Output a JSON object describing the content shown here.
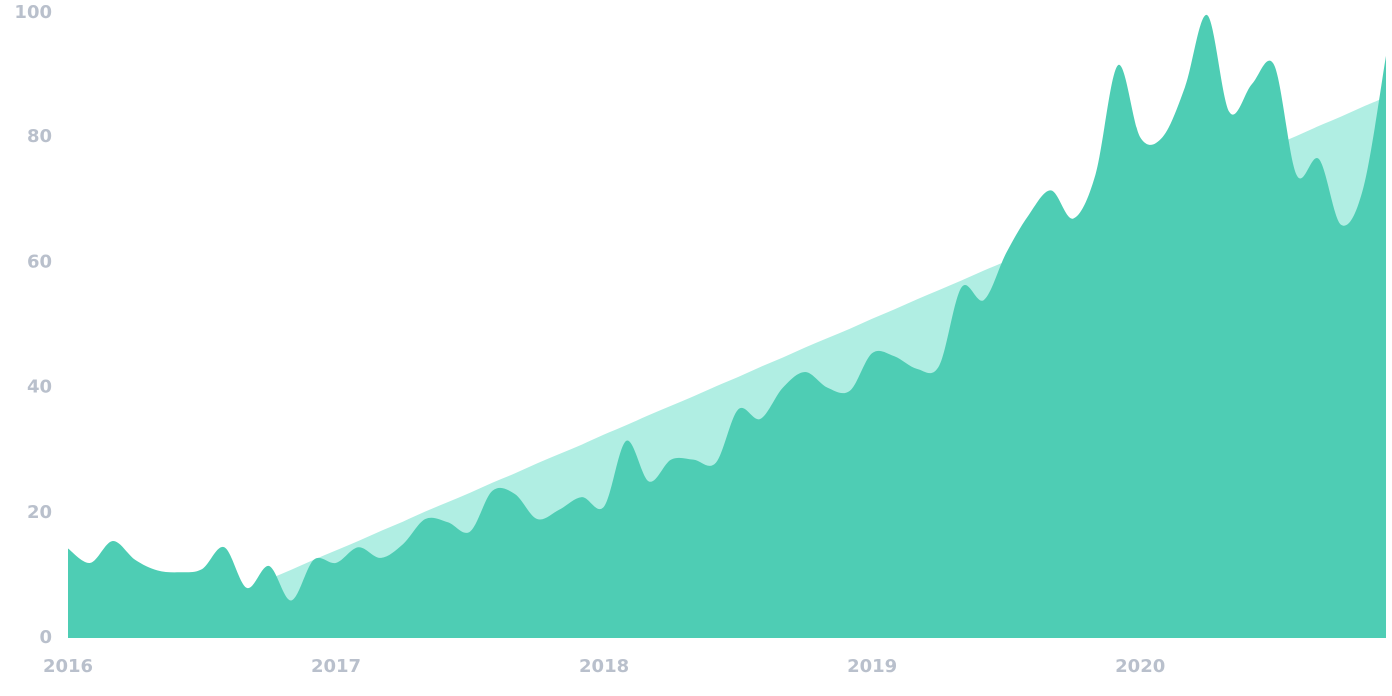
{
  "chart_data": {
    "type": "area",
    "x": [
      2016,
      2016.083,
      2016.167,
      2016.25,
      2016.333,
      2016.417,
      2016.5,
      2016.583,
      2016.667,
      2016.75,
      2016.833,
      2016.917,
      2017,
      2017.083,
      2017.167,
      2017.25,
      2017.333,
      2017.417,
      2017.5,
      2017.583,
      2017.667,
      2017.75,
      2017.833,
      2017.917,
      2018,
      2018.083,
      2018.167,
      2018.25,
      2018.333,
      2018.417,
      2018.5,
      2018.583,
      2018.667,
      2018.75,
      2018.833,
      2018.917,
      2019,
      2019.083,
      2019.167,
      2019.25,
      2019.333,
      2019.417,
      2019.5,
      2019.583,
      2019.667,
      2019.75,
      2019.833,
      2019.917,
      2020,
      2020.083,
      2020.167,
      2020.25,
      2020.333,
      2020.417,
      2020.5,
      2020.583,
      2020.667,
      2020.75,
      2020.833,
      2020.917
    ],
    "series": [
      {
        "color": "#b0eee3",
        "values": [
          null,
          null,
          null,
          null,
          null,
          null,
          null,
          null,
          7.8,
          9.4,
          10.9,
          12.5,
          14.0,
          15.5,
          17.1,
          18.6,
          20.2,
          21.7,
          23.2,
          24.8,
          26.3,
          27.9,
          29.4,
          30.9,
          32.5,
          34.0,
          35.6,
          37.1,
          38.6,
          40.2,
          41.7,
          43.3,
          44.8,
          46.4,
          47.9,
          49.4,
          51.0,
          52.5,
          54.1,
          55.6,
          57.1,
          58.7,
          60.2,
          61.8,
          63.3,
          64.8,
          66.4,
          67.9,
          69.5,
          71.0,
          72.5,
          74.1,
          75.6,
          77.2,
          78.7,
          80.2,
          81.8,
          83.3,
          84.9,
          86.4
        ]
      },
      {
        "color": "#4ecdb4",
        "values": [
          14.3,
          12,
          15.5,
          12.5,
          10.8,
          10.5,
          11,
          14.5,
          8,
          11.5,
          6,
          12.5,
          12,
          14.5,
          12.8,
          15,
          19,
          18.5,
          17,
          23.5,
          23,
          19,
          20.5,
          22.5,
          21,
          31.5,
          25,
          28.5,
          28.5,
          28,
          36.5,
          35,
          40,
          42.5,
          40,
          39.5,
          45.5,
          45,
          43,
          43.5,
          56,
          54,
          61.5,
          67.5,
          71.5,
          67,
          74,
          91.5,
          80,
          80,
          88,
          99.5,
          84,
          88.5,
          91.5,
          74,
          76.5,
          66,
          72,
          93
        ]
      }
    ],
    "xlim": [
      2016,
      2020.917
    ],
    "xticks": [
      2016,
      2017,
      2018,
      2019,
      2020
    ],
    "ylim": [
      0,
      100
    ],
    "yticks": [
      0,
      20,
      40,
      60,
      80,
      100
    ],
    "grid": false
  }
}
